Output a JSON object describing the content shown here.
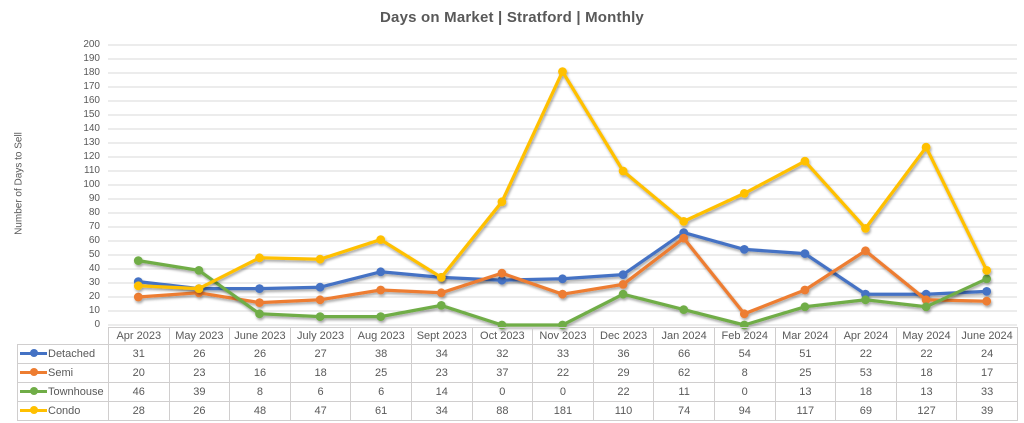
{
  "chart_data": {
    "type": "line",
    "title": "Days on Market | Stratford | Monthly",
    "xlabel": "",
    "ylabel": "Number of Days to Sell",
    "ylim": [
      0,
      200
    ],
    "ytick_step": 10,
    "grid": true,
    "legend_position": "table-left",
    "categories": [
      "Apr 2023",
      "May 2023",
      "June 2023",
      "July 2023",
      "Aug 2023",
      "Sept 2023",
      "Oct 2023",
      "Nov 2023",
      "Dec 2023",
      "Jan 2024",
      "Feb 2024",
      "Mar 2024",
      "Apr 2024",
      "May 2024",
      "June 2024"
    ],
    "series": [
      {
        "name": "Detached",
        "color": "#4472C4",
        "values": [
          31,
          26,
          26,
          27,
          38,
          34,
          32,
          33,
          36,
          66,
          54,
          51,
          22,
          22,
          24
        ]
      },
      {
        "name": "Semi",
        "color": "#ED7D31",
        "values": [
          20,
          23,
          16,
          18,
          25,
          23,
          37,
          22,
          29,
          62,
          8,
          25,
          53,
          18,
          17
        ]
      },
      {
        "name": "Townhouse",
        "color": "#70AD47",
        "values": [
          46,
          39,
          8,
          6,
          6,
          14,
          0,
          0,
          22,
          11,
          0,
          13,
          18,
          13,
          33
        ]
      },
      {
        "name": "Condo",
        "color": "#FFC000",
        "values": [
          28,
          26,
          48,
          47,
          61,
          34,
          88,
          181,
          110,
          74,
          94,
          117,
          69,
          127,
          39
        ]
      }
    ],
    "colors": {
      "gridline": "#D9D9D9",
      "axis_text": "#595959",
      "title_text": "#595959",
      "table_border": "#D0CECE",
      "table_text": "#595959"
    }
  }
}
